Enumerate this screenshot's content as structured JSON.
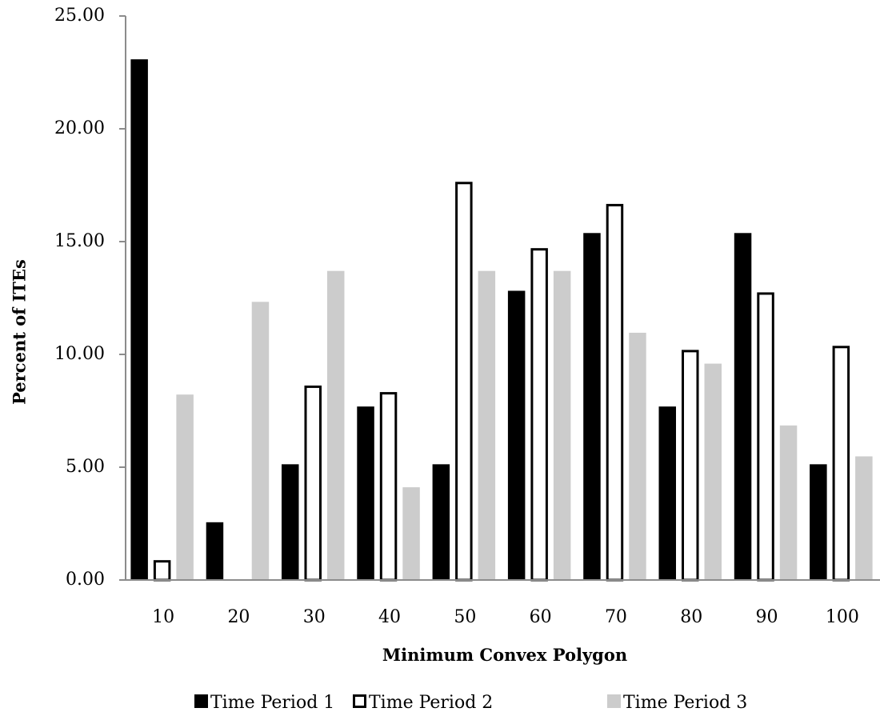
{
  "chart_data": {
    "type": "bar",
    "xlabel": "Minimum Convex Polygon",
    "ylabel": "Percent of ITEs",
    "categories": [
      "10",
      "20",
      "30",
      "40",
      "50",
      "60",
      "70",
      "80",
      "90",
      "100"
    ],
    "ylim": [
      0,
      25
    ],
    "yticks": [
      "0.00",
      "5.00",
      "10.00",
      "15.00",
      "20.00",
      "25.00"
    ],
    "grid": false,
    "legend_position": "bottom",
    "series": [
      {
        "name": "Time Period 1",
        "color": "#000000",
        "style": "solid",
        "values": [
          23.08,
          2.56,
          5.13,
          7.69,
          5.13,
          12.82,
          15.38,
          7.69,
          15.38,
          5.13
        ]
      },
      {
        "name": "Time Period 2",
        "color": "#ffffff",
        "style": "outline",
        "values": [
          0.88,
          0.0,
          8.62,
          8.33,
          17.65,
          14.71,
          16.67,
          10.2,
          12.75,
          10.38
        ]
      },
      {
        "name": "Time Period 3",
        "color": "#cccccc",
        "style": "solid",
        "values": [
          8.22,
          12.33,
          13.7,
          4.11,
          13.7,
          13.7,
          10.96,
          9.59,
          6.85,
          5.48
        ]
      }
    ]
  }
}
